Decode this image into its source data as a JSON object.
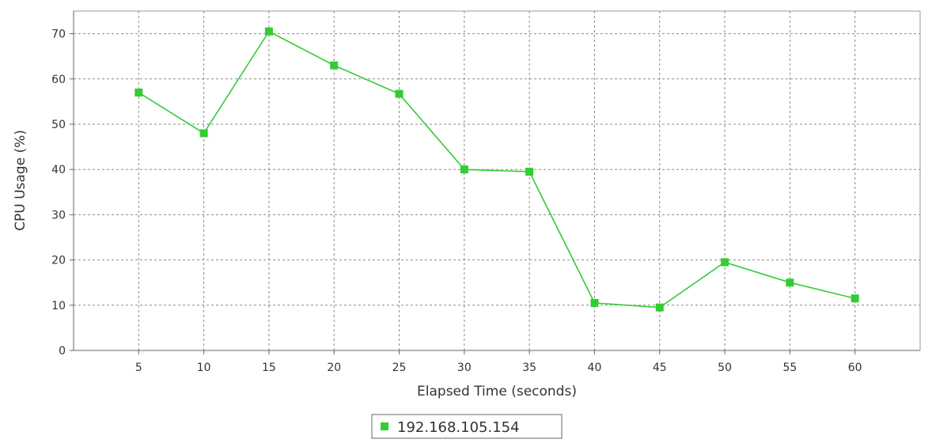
{
  "chart_data": {
    "type": "line",
    "title": "",
    "xlabel": "Elapsed Time (seconds)",
    "ylabel": "CPU Usage (%)",
    "x": [
      5,
      10,
      15,
      20,
      25,
      30,
      35,
      40,
      45,
      50,
      55,
      60
    ],
    "xlim": [
      0,
      65
    ],
    "ylim": [
      0,
      75
    ],
    "yticks": [
      0,
      10,
      20,
      30,
      40,
      50,
      60,
      70
    ],
    "grid": true,
    "legend_position": "bottom-center",
    "series": [
      {
        "name": "192.168.105.154",
        "color": "#33cc33",
        "marker": "square",
        "values": [
          57,
          48,
          70.5,
          63,
          56.7,
          40,
          39.5,
          10.5,
          9.5,
          19.5,
          15,
          11.5
        ]
      }
    ]
  }
}
